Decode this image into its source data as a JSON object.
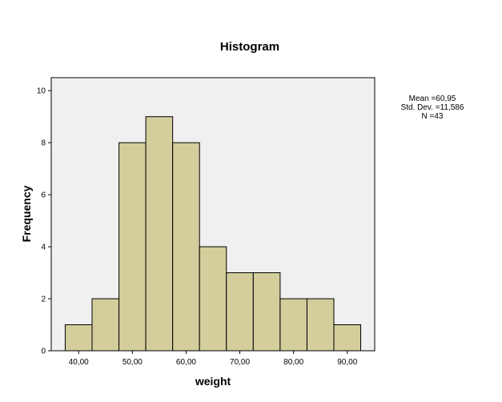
{
  "chart_data": {
    "type": "histogram",
    "title": "Histogram",
    "xlabel": "weight",
    "ylabel": "Frequency",
    "bin_edges": [
      37.5,
      42.5,
      47.5,
      52.5,
      57.5,
      62.5,
      67.5,
      72.5,
      77.5,
      82.5,
      87.5,
      92.5
    ],
    "values": [
      1,
      2,
      8,
      9,
      8,
      4,
      3,
      3,
      2,
      2,
      1
    ],
    "xlim": [
      34.9,
      95.1
    ],
    "ylim": [
      0,
      10.5
    ],
    "x_ticks": [
      40,
      50,
      60,
      70,
      80,
      90
    ],
    "x_tick_labels": [
      "40,00",
      "50,00",
      "60,00",
      "70,00",
      "80,00",
      "90,00"
    ],
    "y_ticks": [
      0,
      2,
      4,
      6,
      8,
      10
    ],
    "y_tick_labels": [
      "0",
      "2",
      "4",
      "6",
      "8",
      "10"
    ],
    "grid": false,
    "bar_color": "#d3ce9b",
    "bar_edge_color": "#000000",
    "plot_background": "#f0f0f0",
    "stats": {
      "mean": "Mean =60,95",
      "std_dev": "Std. Dev. =11,586",
      "n": "N =43"
    }
  }
}
